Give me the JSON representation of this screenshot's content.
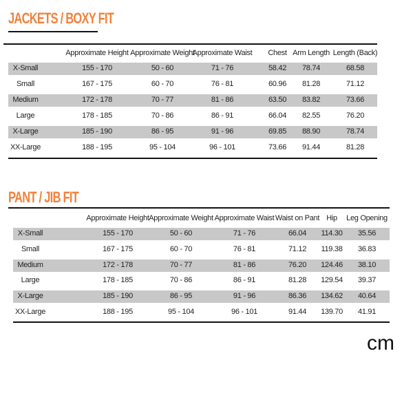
{
  "jackets": {
    "title": "JACKETS / BOXY FIT",
    "headers": [
      "Approximate Height",
      "Approximate Weight",
      "Approximate Waist",
      "Chest",
      "Arm Length",
      "Length (Back)"
    ],
    "rows": [
      [
        "X-Small",
        "155 - 170",
        "50 - 60",
        "71 - 76",
        "58.42",
        "78.74",
        "68.58"
      ],
      [
        "Small",
        "167 - 175",
        "60 - 70",
        "76 - 81",
        "60.96",
        "81.28",
        "71.12"
      ],
      [
        "Medium",
        "172 - 178",
        "70 - 77",
        "81 - 86",
        "63.50",
        "83.82",
        "73.66"
      ],
      [
        "Large",
        "178 - 185",
        "70 - 86",
        "86 - 91",
        "66.04",
        "82.55",
        "76.20"
      ],
      [
        "X-Large",
        "185 - 190",
        "86 - 95",
        "91 - 96",
        "69.85",
        "88.90",
        "78.74"
      ],
      [
        "XX-Large",
        "188 - 195",
        "95 - 104",
        "96 - 101",
        "73.66",
        "91.44",
        "81.28"
      ]
    ]
  },
  "pants": {
    "title": "PANT / JIB FIT",
    "headers": [
      "Approximate Height",
      "Approximate Weight",
      "Approximate Waist",
      "Waist on Pant",
      "Hip",
      "Leg Opening"
    ],
    "rows": [
      [
        "X-Small",
        "155 - 170",
        "50 - 60",
        "71 - 76",
        "66.04",
        "114.30",
        "35.56"
      ],
      [
        "Small",
        "167 - 175",
        "60 - 70",
        "76 - 81",
        "71.12",
        "119.38",
        "36.83"
      ],
      [
        "Medium",
        "172 - 178",
        "70 - 77",
        "81 - 86",
        "76.20",
        "124.46",
        "38.10"
      ],
      [
        "Large",
        "178 - 185",
        "70 - 86",
        "86 - 91",
        "81.28",
        "129.54",
        "39.37"
      ],
      [
        "X-Large",
        "185 - 190",
        "86 - 95",
        "91 - 96",
        "86.36",
        "134.62",
        "40.64"
      ],
      [
        "XX-Large",
        "188 - 195",
        "95 - 104",
        "96 - 101",
        "91.44",
        "139.70",
        "41.91"
      ]
    ]
  },
  "unit": "cm"
}
